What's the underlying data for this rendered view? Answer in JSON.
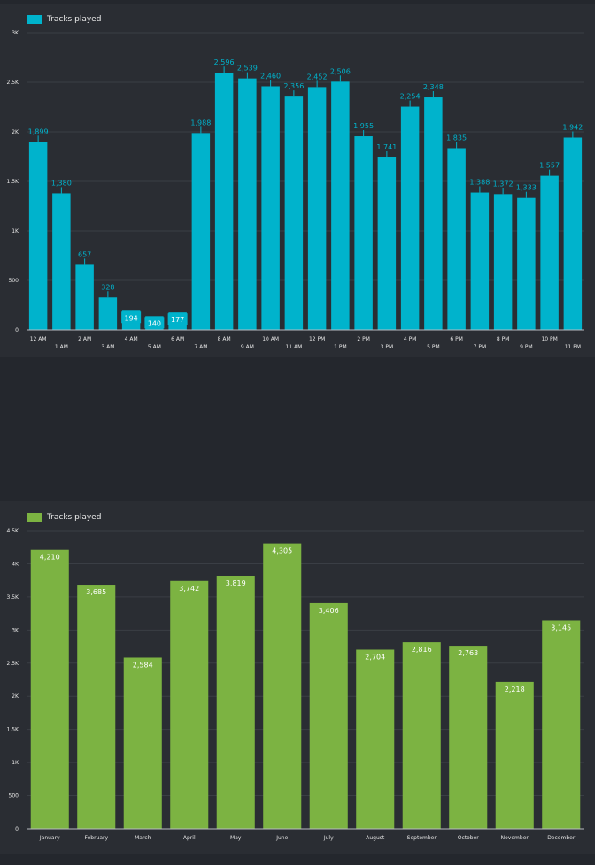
{
  "colors": {
    "hourly": "#00b3cc",
    "monthly": "#7cb342",
    "background": "#2a2d33"
  },
  "chart_data": [
    {
      "type": "bar",
      "legend": "Tracks played",
      "legend_position": "top-left",
      "categories": [
        "12 AM",
        "1 AM",
        "2 AM",
        "3 AM",
        "4 AM",
        "5 AM",
        "6 AM",
        "7 AM",
        "8 AM",
        "9 AM",
        "10 AM",
        "11 AM",
        "12 PM",
        "1 PM",
        "2 PM",
        "3 PM",
        "4 PM",
        "5 PM",
        "6 PM",
        "7 PM",
        "8 PM",
        "9 PM",
        "10 PM",
        "11 PM"
      ],
      "series": [
        {
          "name": "Tracks played",
          "values": [
            1899,
            1380,
            657,
            328,
            194,
            140,
            177,
            1988,
            2596,
            2539,
            2460,
            2356,
            2452,
            2506,
            1955,
            1741,
            2254,
            2348,
            1835,
            1388,
            1372,
            1333,
            1557,
            1942
          ]
        }
      ],
      "ylim": [
        0,
        3000
      ],
      "yticks": [
        0,
        500,
        1000,
        1500,
        2000,
        2500,
        3000
      ],
      "ytick_labels": [
        "0",
        "500",
        "1K",
        "1.5K",
        "2K",
        "2.5K",
        "3K"
      ],
      "grid": true,
      "data_labels": true
    },
    {
      "type": "bar",
      "legend": "Tracks played",
      "legend_position": "top-left",
      "categories": [
        "January",
        "February",
        "March",
        "April",
        "May",
        "June",
        "July",
        "August",
        "September",
        "October",
        "November",
        "December"
      ],
      "series": [
        {
          "name": "Tracks played",
          "values": [
            4210,
            3685,
            2584,
            3742,
            3819,
            4305,
            3406,
            2704,
            2816,
            2763,
            2218,
            3145
          ]
        }
      ],
      "ylim": [
        0,
        4500
      ],
      "yticks": [
        0,
        500,
        1000,
        1500,
        2000,
        2500,
        3000,
        3500,
        4000,
        4500
      ],
      "ytick_labels": [
        "0",
        "500",
        "1K",
        "1.5K",
        "2K",
        "2.5K",
        "3K",
        "3.5K",
        "4K",
        "4.5K"
      ],
      "grid": true,
      "data_labels": true
    }
  ]
}
